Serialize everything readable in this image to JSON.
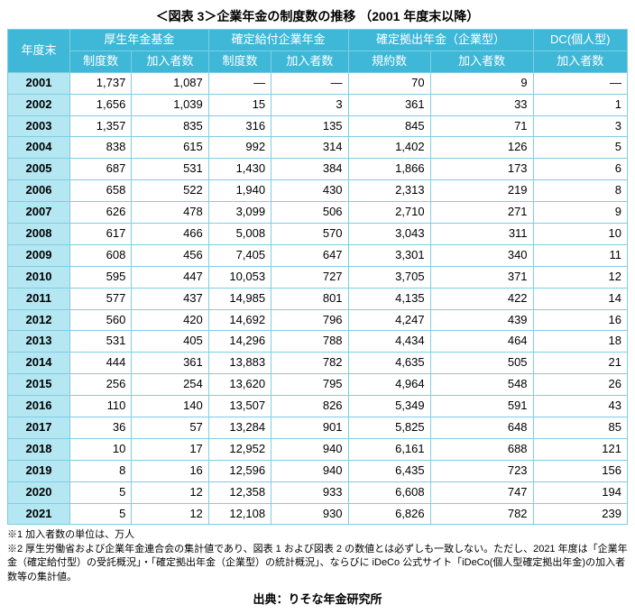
{
  "title": "＜図表 3＞企業年金の制度数の推移 （2001 年度末以降）",
  "headerGroups": {
    "year": "年度末",
    "g1": "厚生年金基金",
    "g2": "確定給付企業年金",
    "g3": "確定拠出年金（企業型）",
    "g4": "DC(個人型)"
  },
  "subHeaders": {
    "seido": "制度数",
    "kanyu": "加入者数",
    "kiyaku": "規約数"
  },
  "rows": [
    {
      "year": "2001",
      "c1": "1,737",
      "c2": "1,087",
      "c3": "—",
      "c4": "—",
      "c5": "70",
      "c6": "9",
      "c7": "—"
    },
    {
      "year": "2002",
      "c1": "1,656",
      "c2": "1,039",
      "c3": "15",
      "c4": "3",
      "c5": "361",
      "c6": "33",
      "c7": "1"
    },
    {
      "year": "2003",
      "c1": "1,357",
      "c2": "835",
      "c3": "316",
      "c4": "135",
      "c5": "845",
      "c6": "71",
      "c7": "3"
    },
    {
      "year": "2004",
      "c1": "838",
      "c2": "615",
      "c3": "992",
      "c4": "314",
      "c5": "1,402",
      "c6": "126",
      "c7": "5"
    },
    {
      "year": "2005",
      "c1": "687",
      "c2": "531",
      "c3": "1,430",
      "c4": "384",
      "c5": "1,866",
      "c6": "173",
      "c7": "6"
    },
    {
      "year": "2006",
      "c1": "658",
      "c2": "522",
      "c3": "1,940",
      "c4": "430",
      "c5": "2,313",
      "c6": "219",
      "c7": "8"
    },
    {
      "year": "2007",
      "c1": "626",
      "c2": "478",
      "c3": "3,099",
      "c4": "506",
      "c5": "2,710",
      "c6": "271",
      "c7": "9"
    },
    {
      "year": "2008",
      "c1": "617",
      "c2": "466",
      "c3": "5,008",
      "c4": "570",
      "c5": "3,043",
      "c6": "311",
      "c7": "10"
    },
    {
      "year": "2009",
      "c1": "608",
      "c2": "456",
      "c3": "7,405",
      "c4": "647",
      "c5": "3,301",
      "c6": "340",
      "c7": "11"
    },
    {
      "year": "2010",
      "c1": "595",
      "c2": "447",
      "c3": "10,053",
      "c4": "727",
      "c5": "3,705",
      "c6": "371",
      "c7": "12"
    },
    {
      "year": "2011",
      "c1": "577",
      "c2": "437",
      "c3": "14,985",
      "c4": "801",
      "c5": "4,135",
      "c6": "422",
      "c7": "14"
    },
    {
      "year": "2012",
      "c1": "560",
      "c2": "420",
      "c3": "14,692",
      "c4": "796",
      "c5": "4,247",
      "c6": "439",
      "c7": "16"
    },
    {
      "year": "2013",
      "c1": "531",
      "c2": "405",
      "c3": "14,296",
      "c4": "788",
      "c5": "4,434",
      "c6": "464",
      "c7": "18"
    },
    {
      "year": "2014",
      "c1": "444",
      "c2": "361",
      "c3": "13,883",
      "c4": "782",
      "c5": "4,635",
      "c6": "505",
      "c7": "21"
    },
    {
      "year": "2015",
      "c1": "256",
      "c2": "254",
      "c3": "13,620",
      "c4": "795",
      "c5": "4,964",
      "c6": "548",
      "c7": "26"
    },
    {
      "year": "2016",
      "c1": "110",
      "c2": "140",
      "c3": "13,507",
      "c4": "826",
      "c5": "5,349",
      "c6": "591",
      "c7": "43"
    },
    {
      "year": "2017",
      "c1": "36",
      "c2": "57",
      "c3": "13,284",
      "c4": "901",
      "c5": "5,825",
      "c6": "648",
      "c7": "85"
    },
    {
      "year": "2018",
      "c1": "10",
      "c2": "17",
      "c3": "12,952",
      "c4": "940",
      "c5": "6,161",
      "c6": "688",
      "c7": "121"
    },
    {
      "year": "2019",
      "c1": "8",
      "c2": "16",
      "c3": "12,596",
      "c4": "940",
      "c5": "6,435",
      "c6": "723",
      "c7": "156"
    },
    {
      "year": "2020",
      "c1": "5",
      "c2": "12",
      "c3": "12,358",
      "c4": "933",
      "c5": "6,608",
      "c6": "747",
      "c7": "194"
    },
    {
      "year": "2021",
      "c1": "5",
      "c2": "12",
      "c3": "12,108",
      "c4": "930",
      "c5": "6,826",
      "c6": "782",
      "c7": "239"
    }
  ],
  "notes": {
    "n1": "※1 加入者数の単位は、万人",
    "n2": "※2 厚生労働省および企業年金連合会の集計値であり、図表 1 および図表 2 の数値とは必ずしも一致しない。ただし、2021 年度は「企業年金（確定給付型）の受託概況」・「確定拠出年金（企業型）の統計概況」、ならびに iDeCo 公式サイト「iDeCo(個人型確定拠出年金)の加入者数等の集計値。"
  },
  "source": "出典：りそな年金研究所"
}
